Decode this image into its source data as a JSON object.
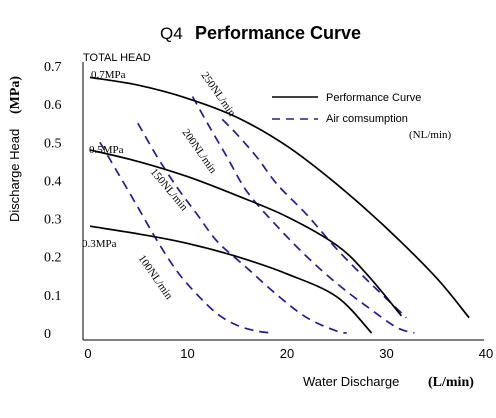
{
  "chart_data": {
    "type": "line",
    "title": "Q4 Performance Curve",
    "title_parts": {
      "model": "Q4",
      "rest": "Performance Curve"
    },
    "xlabel": "Water Discharge",
    "xlabel_unit": "(L/min)",
    "ylabel": "Discharge Head",
    "ylabel_unit": "(MPa)",
    "total_head_label": "TOTAL HEAD",
    "xlim": [
      0,
      40
    ],
    "ylim": [
      0,
      0.7
    ],
    "xticks": [
      "0",
      "10",
      "20",
      "30",
      "40"
    ],
    "yticks": [
      "0",
      "0.1",
      "0.2",
      "0.3",
      "0.4",
      "0.5",
      "0.6",
      "0.7"
    ],
    "grid": false,
    "legend_position": "top-right",
    "legend": {
      "performance": "Performance Curve",
      "air": "Air comsumption",
      "air_unit": "(NL/min)"
    },
    "colors": {
      "performance": "#000000",
      "air": "#2a1a8c"
    },
    "performance_curves": [
      {
        "label": "0.7MPa",
        "points": [
          [
            0.2,
            0.67
          ],
          [
            5,
            0.65
          ],
          [
            10,
            0.615
          ],
          [
            15,
            0.565
          ],
          [
            20,
            0.49
          ],
          [
            25,
            0.39
          ],
          [
            30,
            0.275
          ],
          [
            35,
            0.145
          ],
          [
            38.3,
            0.04
          ]
        ]
      },
      {
        "label": "0.5MPa",
        "points": [
          [
            0.2,
            0.48
          ],
          [
            5,
            0.45
          ],
          [
            10,
            0.41
          ],
          [
            15,
            0.36
          ],
          [
            20,
            0.305
          ],
          [
            25,
            0.23
          ],
          [
            28,
            0.155
          ],
          [
            31.5,
            0.045
          ]
        ]
      },
      {
        "label": "0.3MPa",
        "points": [
          [
            0.2,
            0.28
          ],
          [
            5,
            0.26
          ],
          [
            10,
            0.235
          ],
          [
            15,
            0.2
          ],
          [
            20,
            0.155
          ],
          [
            25,
            0.095
          ],
          [
            28.5,
            0.0
          ]
        ]
      }
    ],
    "air_consumption_curves": [
      {
        "label": "100NL/min",
        "points": [
          [
            1.2,
            0.5
          ],
          [
            3,
            0.42
          ],
          [
            5,
            0.33
          ],
          [
            7,
            0.24
          ],
          [
            9,
            0.16
          ],
          [
            11,
            0.1
          ],
          [
            13,
            0.05
          ],
          [
            15,
            0.02
          ],
          [
            17,
            0.005
          ],
          [
            18.6,
            0.0
          ]
        ]
      },
      {
        "label": "150NL/min",
        "points": [
          [
            5,
            0.55
          ],
          [
            7,
            0.46
          ],
          [
            9,
            0.38
          ],
          [
            11,
            0.31
          ],
          [
            13,
            0.24
          ],
          [
            16,
            0.17
          ],
          [
            19,
            0.1
          ],
          [
            22,
            0.04
          ],
          [
            25,
            0.005
          ],
          [
            26,
            0.0
          ]
        ]
      },
      {
        "label": "200NL/min",
        "points": [
          [
            10.5,
            0.62
          ],
          [
            12,
            0.55
          ],
          [
            14,
            0.46
          ],
          [
            16,
            0.37
          ],
          [
            19,
            0.28
          ],
          [
            22,
            0.2
          ],
          [
            25,
            0.13
          ],
          [
            28,
            0.07
          ],
          [
            31,
            0.015
          ],
          [
            32.8,
            0.0
          ]
        ]
      },
      {
        "label": "250NL/min",
        "points": [
          [
            13.5,
            0.56
          ],
          [
            15,
            0.52
          ],
          [
            17,
            0.46
          ],
          [
            19,
            0.39
          ],
          [
            22,
            0.31
          ],
          [
            25,
            0.22
          ],
          [
            28,
            0.14
          ],
          [
            30,
            0.09
          ],
          [
            32,
            0.04
          ]
        ]
      }
    ]
  }
}
